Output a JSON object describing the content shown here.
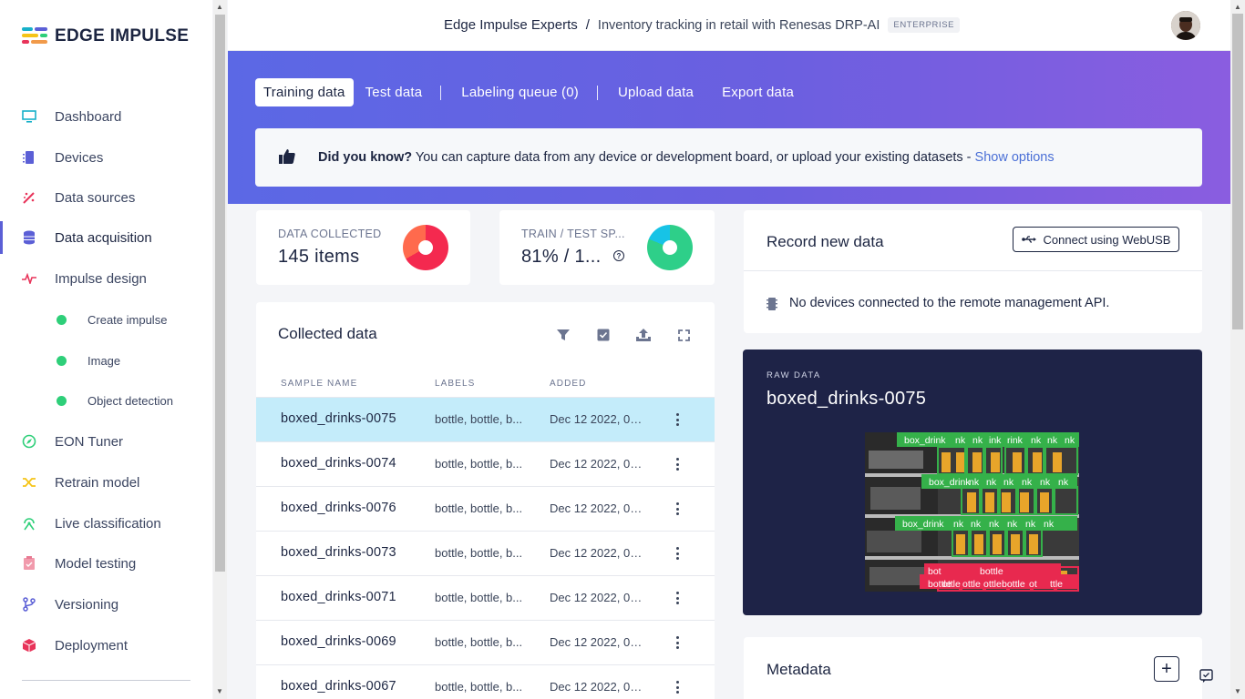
{
  "app": {
    "logo_text": "EDGE IMPULSE"
  },
  "sidebar": {
    "items": [
      {
        "label": "Dashboard",
        "icon": "monitor-icon",
        "color": "#17b0c9"
      },
      {
        "label": "Devices",
        "icon": "chip-icon",
        "color": "#5b5fd6"
      },
      {
        "label": "Data sources",
        "icon": "wand-icon",
        "color": "#e8345a"
      },
      {
        "label": "Data acquisition",
        "icon": "database-icon",
        "color": "#5b5fd6",
        "active": true
      },
      {
        "label": "Impulse design",
        "icon": "pulse-icon",
        "color": "#e8345a"
      },
      {
        "label": "Create impulse",
        "sub": true
      },
      {
        "label": "Image",
        "sub": true
      },
      {
        "label": "Object detection",
        "sub": true
      },
      {
        "label": "EON Tuner",
        "icon": "compass-icon",
        "color": "#2ecf79"
      },
      {
        "label": "Retrain model",
        "icon": "shuffle-icon",
        "color": "#f5c418"
      },
      {
        "label": "Live classification",
        "icon": "broadcast-icon",
        "color": "#2ecf79"
      },
      {
        "label": "Model testing",
        "icon": "clipboard-icon",
        "color": "#f19aac"
      },
      {
        "label": "Versioning",
        "icon": "branch-icon",
        "color": "#5b5fd6"
      },
      {
        "label": "Deployment",
        "icon": "box-icon",
        "color": "#e8345a"
      }
    ]
  },
  "header": {
    "org": "Edge Impulse Experts",
    "separator": "/",
    "project": "Inventory tracking in retail with Renesas DRP-AI",
    "badge": "ENTERPRISE"
  },
  "tabs": {
    "training": "Training data",
    "test": "Test data",
    "labeling": "Labeling queue (0)",
    "upload": "Upload data",
    "export": "Export data"
  },
  "tip": {
    "bold": "Did you know?",
    "text": " You can capture data from any device or development board, or upload your existing datasets - ",
    "link": "Show options"
  },
  "stats": {
    "collected_label": "DATA COLLECTED",
    "collected_value": "145 items",
    "split_label": "TRAIN / TEST SP...",
    "split_value": "81% / 1...",
    "help": "?"
  },
  "collected": {
    "title": "Collected data",
    "columns": [
      "SAMPLE NAME",
      "LABELS",
      "ADDED"
    ],
    "rows": [
      {
        "name": "boxed_drinks-0075",
        "labels": "bottle, bottle, b...",
        "added": "Dec 12 2022, 00:..."
      },
      {
        "name": "boxed_drinks-0074",
        "labels": "bottle, bottle, b...",
        "added": "Dec 12 2022, 00:..."
      },
      {
        "name": "boxed_drinks-0076",
        "labels": "bottle, bottle, b...",
        "added": "Dec 12 2022, 00:..."
      },
      {
        "name": "boxed_drinks-0073",
        "labels": "bottle, bottle, b...",
        "added": "Dec 12 2022, 00:..."
      },
      {
        "name": "boxed_drinks-0071",
        "labels": "bottle, bottle, b...",
        "added": "Dec 12 2022, 00:..."
      },
      {
        "name": "boxed_drinks-0069",
        "labels": "bottle, bottle, b...",
        "added": "Dec 12 2022, 00:..."
      },
      {
        "name": "boxed_drinks-0067",
        "labels": "bottle, bottle, b...",
        "added": "Dec 12 2022, 00:..."
      }
    ]
  },
  "record": {
    "title": "Record new data",
    "button": "Connect using WebUSB",
    "message": "No devices connected to the remote management API."
  },
  "raw": {
    "label": "RAW DATA",
    "name": "boxed_drinks-0075",
    "box_labels": [
      "box_drink",
      "nk",
      "nk",
      "ink",
      "rink",
      "nk",
      "nk",
      "nk",
      "box_drink",
      "nk",
      "nk",
      "nk",
      "nk",
      "nk",
      "nk",
      "box_drink",
      "nk",
      "nk",
      "nk",
      "nk",
      "nk",
      "nk",
      "bot",
      "bottle",
      "ottle",
      "ottle",
      "bottle",
      "ottle",
      "bottle",
      "ot",
      "ttle"
    ]
  },
  "metadata": {
    "title": "Metadata",
    "add": "+"
  },
  "colors": {
    "accent": "#5b5fd6",
    "green": "#2ecf79",
    "red": "#e8345a",
    "selected_row": "#c4ecfa",
    "raw_bg": "#1e2347"
  }
}
